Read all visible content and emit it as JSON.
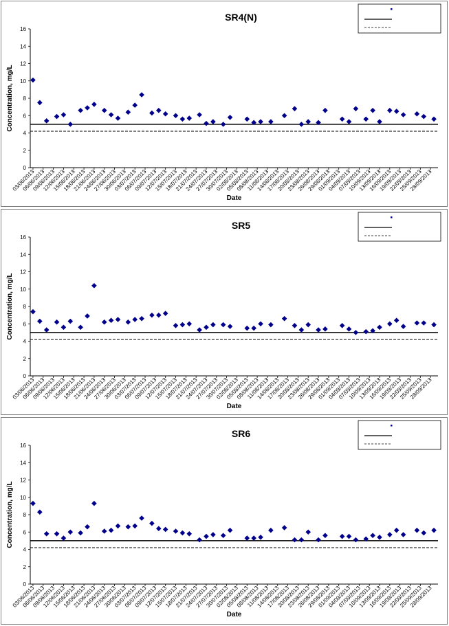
{
  "chart_data": [
    {
      "type": "scatter",
      "title": "SR4(N)",
      "xlabel": "Date",
      "ylabel": "Concentration, mg/L",
      "ylim": [
        0,
        16
      ],
      "yticks": [
        "0",
        "2",
        "4",
        "6",
        "8",
        "10",
        "12",
        "14",
        "16"
      ],
      "x_tick_labels": [
        "03/06/2013",
        "06/06/2013",
        "09/06/2013",
        "12/06/2013",
        "15/06/2013",
        "18/06/2013",
        "21/06/2013",
        "24/06/2013",
        "27/06/2013",
        "30/06/2013",
        "03/07/2013",
        "06/07/2013",
        "09/07/2013",
        "12/07/2013",
        "15/07/2013",
        "18/07/2013",
        "21/07/2013",
        "24/07/2013",
        "27/07/2013",
        "30/07/2013",
        "02/08/2013",
        "05/08/2013",
        "08/08/2013",
        "11/08/2013",
        "14/08/2013",
        "17/08/2013",
        "20/08/2013",
        "23/08/2013",
        "26/08/2013",
        "29/08/2013",
        "01/09/2013",
        "04/09/2013",
        "07/09/2013",
        "10/09/2013",
        "13/09/2013",
        "16/09/2013",
        "19/09/2013",
        "22/09/2013",
        "25/09/2013",
        "28/09/2013"
      ],
      "grid": false,
      "legend_position": "top-right",
      "reference_lines": [
        {
          "style": "solid",
          "value": 5.0
        },
        {
          "style": "dashed",
          "value": 4.2
        }
      ],
      "points": [
        {
          "x": "03/06/2013",
          "y": 10.1
        },
        {
          "x": "05/06/2013",
          "y": 7.5
        },
        {
          "x": "07/06/2013",
          "y": 5.4
        },
        {
          "x": "10/06/2013",
          "y": 5.9
        },
        {
          "x": "12/06/2013",
          "y": 6.1
        },
        {
          "x": "14/06/2013",
          "y": 5.0
        },
        {
          "x": "17/06/2013",
          "y": 6.6
        },
        {
          "x": "19/06/2013",
          "y": 6.9
        },
        {
          "x": "21/06/2013",
          "y": 7.3
        },
        {
          "x": "24/06/2013",
          "y": 6.6
        },
        {
          "x": "26/06/2013",
          "y": 6.1
        },
        {
          "x": "28/06/2013",
          "y": 5.7
        },
        {
          "x": "01/07/2013",
          "y": 6.4
        },
        {
          "x": "03/07/2013",
          "y": 7.2
        },
        {
          "x": "05/07/2013",
          "y": 8.4
        },
        {
          "x": "08/07/2013",
          "y": 6.3
        },
        {
          "x": "10/07/2013",
          "y": 6.6
        },
        {
          "x": "12/07/2013",
          "y": 6.2
        },
        {
          "x": "15/07/2013",
          "y": 6.0
        },
        {
          "x": "17/07/2013",
          "y": 5.6
        },
        {
          "x": "19/07/2013",
          "y": 5.7
        },
        {
          "x": "22/07/2013",
          "y": 6.1
        },
        {
          "x": "24/07/2013",
          "y": 5.1
        },
        {
          "x": "26/07/2013",
          "y": 5.3
        },
        {
          "x": "29/07/2013",
          "y": 5.0
        },
        {
          "x": "31/07/2013",
          "y": 5.8
        },
        {
          "x": "05/08/2013",
          "y": 5.6
        },
        {
          "x": "07/08/2013",
          "y": 5.2
        },
        {
          "x": "09/08/2013",
          "y": 5.3
        },
        {
          "x": "12/08/2013",
          "y": 5.3
        },
        {
          "x": "16/08/2013",
          "y": 6.0
        },
        {
          "x": "19/08/2013",
          "y": 6.8
        },
        {
          "x": "21/08/2013",
          "y": 5.0
        },
        {
          "x": "23/08/2013",
          "y": 5.3
        },
        {
          "x": "26/08/2013",
          "y": 5.2
        },
        {
          "x": "28/08/2013",
          "y": 6.6
        },
        {
          "x": "02/09/2013",
          "y": 5.6
        },
        {
          "x": "04/09/2013",
          "y": 5.3
        },
        {
          "x": "06/09/2013",
          "y": 6.8
        },
        {
          "x": "09/09/2013",
          "y": 5.6
        },
        {
          "x": "11/09/2013",
          "y": 6.6
        },
        {
          "x": "13/09/2013",
          "y": 5.3
        },
        {
          "x": "16/09/2013",
          "y": 6.6
        },
        {
          "x": "18/09/2013",
          "y": 6.5
        },
        {
          "x": "20/09/2013",
          "y": 6.1
        },
        {
          "x": "24/09/2013",
          "y": 6.2
        },
        {
          "x": "26/09/2013",
          "y": 5.9
        },
        {
          "x": "29/09/2013",
          "y": 5.6
        }
      ]
    },
    {
      "type": "scatter",
      "title": "SR5",
      "xlabel": "Date",
      "ylabel": "Concentration, mg/L",
      "ylim": [
        0,
        16
      ],
      "yticks": [
        "0",
        "2",
        "4",
        "6",
        "8",
        "10",
        "12",
        "14",
        "16"
      ],
      "x_tick_labels": [
        "03/06/2013",
        "06/06/2013",
        "09/06/2013",
        "12/06/2013",
        "15/06/2013",
        "18/06/2013",
        "21/06/2013",
        "24/06/2013",
        "27/06/2013",
        "30/06/2013",
        "03/07/2013",
        "06/07/2013",
        "09/07/2013",
        "12/07/2013",
        "15/07/2013",
        "18/07/2013",
        "21/07/2013",
        "24/07/2013",
        "27/07/2013",
        "30/07/2013",
        "02/08/2013",
        "05/08/2013",
        "08/08/2013",
        "11/08/2013",
        "14/08/2013",
        "17/08/2013",
        "20/08/2013",
        "23/08/2013",
        "26/08/2013",
        "29/08/2013",
        "01/09/2013",
        "04/09/2013",
        "07/09/2013",
        "10/09/2013",
        "13/09/2013",
        "16/09/2013",
        "19/09/2013",
        "22/09/2013",
        "25/09/2013",
        "28/09/2013"
      ],
      "grid": false,
      "legend_position": "top-right",
      "reference_lines": [
        {
          "style": "solid",
          "value": 5.0
        },
        {
          "style": "dashed",
          "value": 4.2
        }
      ],
      "points": [
        {
          "x": "03/06/2013",
          "y": 7.4
        },
        {
          "x": "05/06/2013",
          "y": 6.3
        },
        {
          "x": "07/06/2013",
          "y": 5.3
        },
        {
          "x": "10/06/2013",
          "y": 6.2
        },
        {
          "x": "12/06/2013",
          "y": 5.6
        },
        {
          "x": "14/06/2013",
          "y": 6.3
        },
        {
          "x": "17/06/2013",
          "y": 5.6
        },
        {
          "x": "19/06/2013",
          "y": 6.9
        },
        {
          "x": "21/06/2013",
          "y": 10.4
        },
        {
          "x": "24/06/2013",
          "y": 6.2
        },
        {
          "x": "26/06/2013",
          "y": 6.4
        },
        {
          "x": "28/06/2013",
          "y": 6.5
        },
        {
          "x": "01/07/2013",
          "y": 6.2
        },
        {
          "x": "03/07/2013",
          "y": 6.5
        },
        {
          "x": "05/07/2013",
          "y": 6.6
        },
        {
          "x": "08/07/2013",
          "y": 7.0
        },
        {
          "x": "10/07/2013",
          "y": 7.0
        },
        {
          "x": "12/07/2013",
          "y": 7.2
        },
        {
          "x": "15/07/2013",
          "y": 5.8
        },
        {
          "x": "17/07/2013",
          "y": 5.9
        },
        {
          "x": "19/07/2013",
          "y": 6.0
        },
        {
          "x": "22/07/2013",
          "y": 5.3
        },
        {
          "x": "24/07/2013",
          "y": 5.6
        },
        {
          "x": "26/07/2013",
          "y": 5.9
        },
        {
          "x": "29/07/2013",
          "y": 5.9
        },
        {
          "x": "31/07/2013",
          "y": 5.7
        },
        {
          "x": "05/08/2013",
          "y": 5.5
        },
        {
          "x": "07/08/2013",
          "y": 5.5
        },
        {
          "x": "09/08/2013",
          "y": 6.0
        },
        {
          "x": "12/08/2013",
          "y": 5.9
        },
        {
          "x": "16/08/2013",
          "y": 6.6
        },
        {
          "x": "19/08/2013",
          "y": 5.8
        },
        {
          "x": "21/08/2013",
          "y": 5.3
        },
        {
          "x": "23/08/2013",
          "y": 5.9
        },
        {
          "x": "26/08/2013",
          "y": 5.3
        },
        {
          "x": "28/08/2013",
          "y": 5.4
        },
        {
          "x": "02/09/2013",
          "y": 5.8
        },
        {
          "x": "04/09/2013",
          "y": 5.4
        },
        {
          "x": "06/09/2013",
          "y": 5.0
        },
        {
          "x": "09/09/2013",
          "y": 5.1
        },
        {
          "x": "11/09/2013",
          "y": 5.2
        },
        {
          "x": "13/09/2013",
          "y": 5.6
        },
        {
          "x": "16/09/2013",
          "y": 6.0
        },
        {
          "x": "18/09/2013",
          "y": 6.4
        },
        {
          "x": "20/09/2013",
          "y": 5.7
        },
        {
          "x": "24/09/2013",
          "y": 6.1
        },
        {
          "x": "26/09/2013",
          "y": 6.1
        },
        {
          "x": "29/09/2013",
          "y": 5.9
        }
      ]
    },
    {
      "type": "scatter",
      "title": "SR6",
      "xlabel": "Date",
      "ylabel": "Concentration, mg/L",
      "ylim": [
        0,
        16
      ],
      "yticks": [
        "0",
        "2",
        "4",
        "6",
        "8",
        "10",
        "12",
        "14",
        "16"
      ],
      "x_tick_labels": [
        "03/06/2013",
        "06/06/2013",
        "09/06/2013",
        "12/06/2013",
        "15/06/2013",
        "18/06/2013",
        "21/06/2013",
        "24/06/2013",
        "27/06/2013",
        "30/06/2013",
        "03/07/2013",
        "06/07/2013",
        "09/07/2013",
        "12/07/2013",
        "15/07/2013",
        "18/07/2013",
        "21/07/2013",
        "24/07/2013",
        "27/07/2013",
        "30/07/2013",
        "02/08/2013",
        "05/08/2013",
        "08/08/2013",
        "11/08/2013",
        "14/08/2013",
        "17/08/2013",
        "20/08/2013",
        "23/08/2013",
        "26/08/2013",
        "29/08/2013",
        "01/09/2013",
        "04/09/2013",
        "07/09/2013",
        "10/09/2013",
        "13/09/2013",
        "16/09/2013",
        "19/09/2013",
        "22/09/2013",
        "25/09/2013",
        "28/09/2013"
      ],
      "grid": false,
      "legend_position": "top-right",
      "reference_lines": [
        {
          "style": "solid",
          "value": 5.0
        },
        {
          "style": "dashed",
          "value": 4.2
        }
      ],
      "points": [
        {
          "x": "03/06/2013",
          "y": 9.3
        },
        {
          "x": "05/06/2013",
          "y": 8.3
        },
        {
          "x": "07/06/2013",
          "y": 5.8
        },
        {
          "x": "10/06/2013",
          "y": 5.8
        },
        {
          "x": "12/06/2013",
          "y": 5.3
        },
        {
          "x": "14/06/2013",
          "y": 6.0
        },
        {
          "x": "17/06/2013",
          "y": 5.9
        },
        {
          "x": "19/06/2013",
          "y": 6.6
        },
        {
          "x": "21/06/2013",
          "y": 9.3
        },
        {
          "x": "24/06/2013",
          "y": 6.1
        },
        {
          "x": "26/06/2013",
          "y": 6.2
        },
        {
          "x": "28/06/2013",
          "y": 6.7
        },
        {
          "x": "01/07/2013",
          "y": 6.6
        },
        {
          "x": "03/07/2013",
          "y": 6.7
        },
        {
          "x": "05/07/2013",
          "y": 7.6
        },
        {
          "x": "08/07/2013",
          "y": 7.0
        },
        {
          "x": "10/07/2013",
          "y": 6.4
        },
        {
          "x": "12/07/2013",
          "y": 6.3
        },
        {
          "x": "15/07/2013",
          "y": 6.1
        },
        {
          "x": "17/07/2013",
          "y": 5.9
        },
        {
          "x": "19/07/2013",
          "y": 5.8
        },
        {
          "x": "22/07/2013",
          "y": 5.1
        },
        {
          "x": "24/07/2013",
          "y": 5.5
        },
        {
          "x": "26/07/2013",
          "y": 5.7
        },
        {
          "x": "29/07/2013",
          "y": 5.6
        },
        {
          "x": "31/07/2013",
          "y": 6.2
        },
        {
          "x": "05/08/2013",
          "y": 5.3
        },
        {
          "x": "07/08/2013",
          "y": 5.3
        },
        {
          "x": "09/08/2013",
          "y": 5.4
        },
        {
          "x": "12/08/2013",
          "y": 6.2
        },
        {
          "x": "16/08/2013",
          "y": 6.5
        },
        {
          "x": "19/08/2013",
          "y": 5.1
        },
        {
          "x": "21/08/2013",
          "y": 5.1
        },
        {
          "x": "23/08/2013",
          "y": 6.0
        },
        {
          "x": "26/08/2013",
          "y": 5.1
        },
        {
          "x": "28/08/2013",
          "y": 5.6
        },
        {
          "x": "02/09/2013",
          "y": 5.5
        },
        {
          "x": "04/09/2013",
          "y": 5.5
        },
        {
          "x": "06/09/2013",
          "y": 5.1
        },
        {
          "x": "09/09/2013",
          "y": 5.2
        },
        {
          "x": "11/09/2013",
          "y": 5.6
        },
        {
          "x": "13/09/2013",
          "y": 5.4
        },
        {
          "x": "16/09/2013",
          "y": 5.7
        },
        {
          "x": "18/09/2013",
          "y": 6.2
        },
        {
          "x": "20/09/2013",
          "y": 5.7
        },
        {
          "x": "24/09/2013",
          "y": 6.2
        },
        {
          "x": "26/09/2013",
          "y": 5.9
        },
        {
          "x": "29/09/2013",
          "y": 6.2
        }
      ]
    }
  ],
  "colors": {
    "marker": "#00008b",
    "reference_line": "#000000",
    "panel_border": "#7f7f7f"
  }
}
